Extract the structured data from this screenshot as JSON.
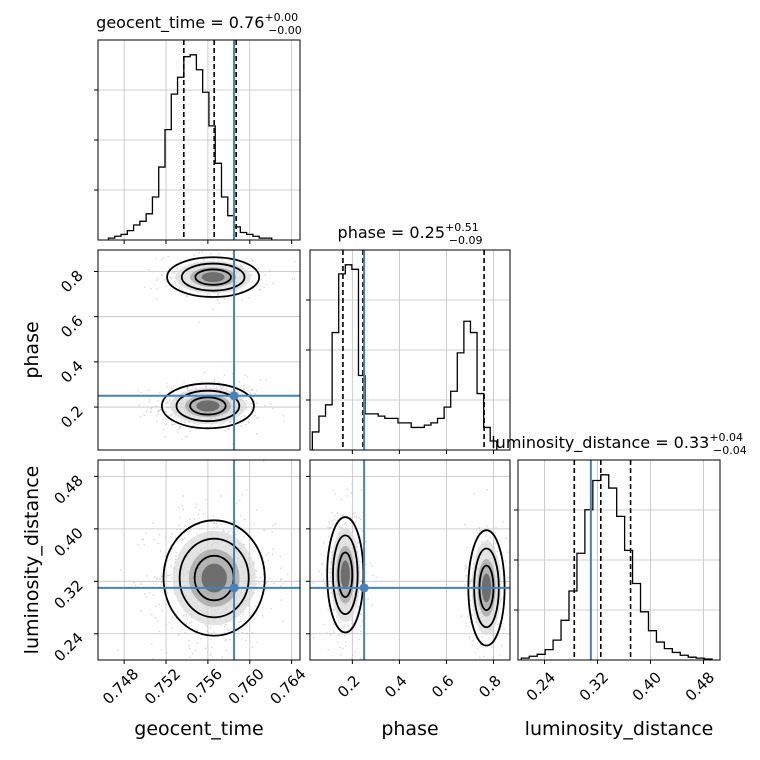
{
  "chart_data": {
    "type": "corner",
    "parameters": [
      "geocent_time",
      "phase",
      "luminosity_distance"
    ],
    "truths": {
      "geocent_time": 0.7585,
      "phase": 0.25,
      "luminosity_distance": 0.31
    },
    "colors": {
      "truth": "#4682b4",
      "hist": "#000000",
      "grid": "#c0c0c0",
      "points": "#bdbdbd"
    },
    "panels": [
      {
        "id": "hist-geocent_time",
        "type": "histogram",
        "param": "geocent_time",
        "title_base": "geocent_time = 0.76",
        "title_sup": "+0.00",
        "title_sub": "−0.00",
        "xlim": [
          0.7455,
          0.7648
        ],
        "xticks": [
          0.748,
          0.752,
          0.756,
          0.76,
          0.764
        ],
        "quantiles": [
          0.7537,
          0.7566,
          0.7587
        ],
        "bins": {
          "start": 0.7465,
          "width": 0.0006,
          "counts": [
            1,
            2,
            3,
            5,
            8,
            10,
            14,
            23,
            39,
            59,
            78,
            87,
            98,
            99,
            91,
            79,
            61,
            41,
            23,
            13,
            7,
            4,
            3,
            2,
            1,
            1
          ]
        }
      },
      {
        "id": "hist-phase",
        "type": "histogram",
        "param": "phase",
        "title_base": "phase = 0.25",
        "title_sup": "+0.51",
        "title_sub": "−0.09",
        "xlim": [
          0.02,
          0.87
        ],
        "xticks": [
          0.2,
          0.4,
          0.6,
          0.8
        ],
        "quantiles": [
          0.16,
          0.245,
          0.76
        ],
        "bins": {
          "start": 0.03,
          "width": 0.028,
          "counts": [
            8,
            15,
            20,
            52,
            78,
            82,
            80,
            33,
            16,
            16,
            15,
            14,
            14,
            12,
            12,
            10,
            10,
            11,
            12,
            14,
            19,
            26,
            43,
            57,
            52,
            25,
            10,
            4
          ]
        }
      },
      {
        "id": "hist-luminosity_distance",
        "type": "histogram",
        "param": "luminosity_distance",
        "title_base": "luminosity_distance = 0.33",
        "title_sup": "+0.04",
        "title_sub": "−0.04",
        "xlim": [
          0.2,
          0.505
        ],
        "xticks": [
          0.24,
          0.32,
          0.4,
          0.48
        ],
        "quantiles": [
          0.285,
          0.325,
          0.37
        ],
        "bins": {
          "start": 0.205,
          "width": 0.012,
          "counts": [
            2,
            4,
            6,
            11,
            21,
            42,
            73,
            113,
            159,
            190,
            196,
            182,
            152,
            116,
            81,
            51,
            31,
            19,
            12,
            8,
            5,
            3,
            2,
            1
          ]
        }
      },
      {
        "id": "scatter-geocent_time-phase",
        "type": "2d-density",
        "x": "geocent_time",
        "y": "phase",
        "xlim": [
          0.7455,
          0.7648
        ],
        "ylim": [
          0.01,
          0.895
        ],
        "ylabel": "phase",
        "yticks": [
          0.2,
          0.4,
          0.6,
          0.8
        ],
        "modes": [
          {
            "cx": 0.756,
            "cy": 0.205,
            "sx": 0.002,
            "sy": 0.045,
            "weight": 0.65
          },
          {
            "cx": 0.7565,
            "cy": 0.775,
            "sx": 0.002,
            "sy": 0.04,
            "weight": 0.3
          }
        ]
      },
      {
        "id": "scatter-geocent_time-luminosity_distance",
        "type": "2d-density",
        "x": "geocent_time",
        "y": "luminosity_distance",
        "xlim": [
          0.7455,
          0.7648
        ],
        "ylim": [
          0.2,
          0.505
        ],
        "xlabel": "geocent_time",
        "ylabel": "luminosity_distance",
        "xticks": [
          0.748,
          0.752,
          0.756,
          0.76,
          0.764
        ],
        "yticks": [
          0.24,
          0.32,
          0.4,
          0.48
        ],
        "modes": [
          {
            "cx": 0.7566,
            "cy": 0.325,
            "sx": 0.0022,
            "sy": 0.04,
            "weight": 1.0
          }
        ]
      },
      {
        "id": "scatter-phase-luminosity_distance",
        "type": "2d-density",
        "x": "phase",
        "y": "luminosity_distance",
        "xlim": [
          0.02,
          0.87
        ],
        "ylim": [
          0.2,
          0.505
        ],
        "xlabel": "phase",
        "xticks": [
          0.2,
          0.4,
          0.6,
          0.8
        ],
        "modes": [
          {
            "cx": 0.17,
            "cy": 0.33,
            "sx": 0.035,
            "sy": 0.04,
            "weight": 0.6
          },
          {
            "cx": 0.77,
            "cy": 0.31,
            "sx": 0.035,
            "sy": 0.04,
            "weight": 0.35
          }
        ]
      }
    ]
  }
}
